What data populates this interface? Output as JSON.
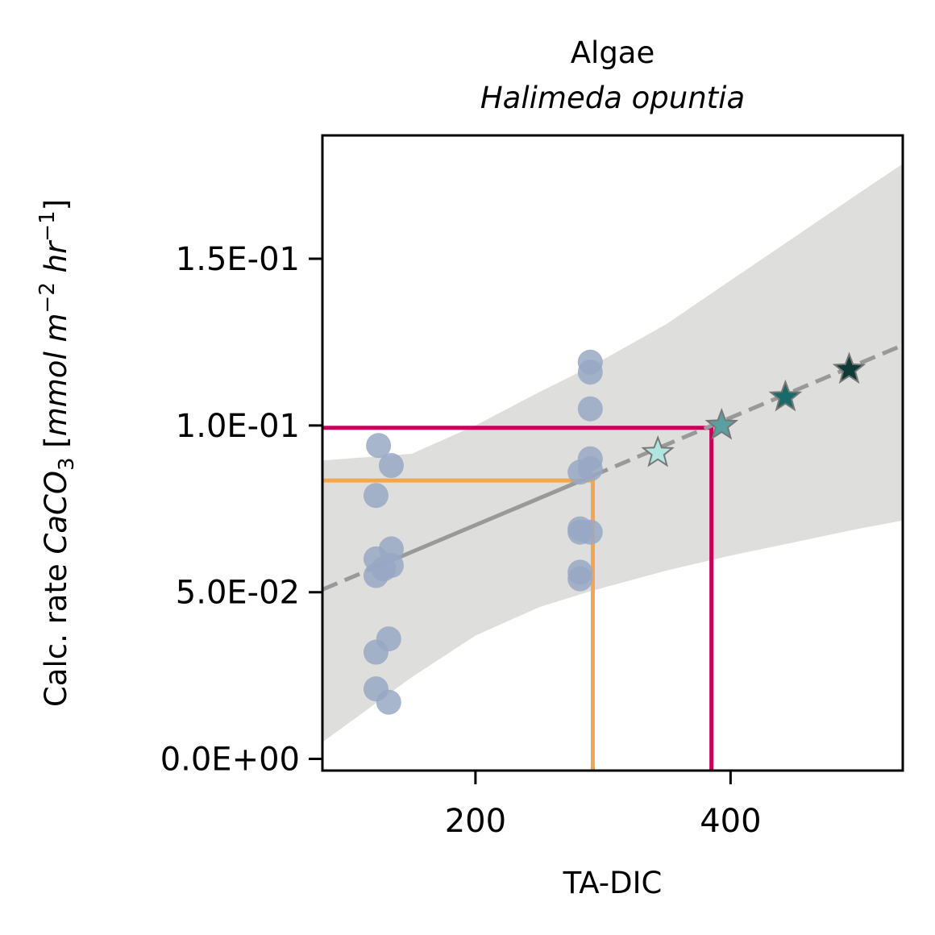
{
  "chart_data": {
    "type": "scatter",
    "title": "Algae",
    "subtitle": "Halimeda opuntia",
    "xlabel": "TA-DIC",
    "ylabel_parts": {
      "prefix": "Calc. rate ",
      "species": "CaCO",
      "species_sub": "3",
      "bracket_open": " [",
      "unit_a": "mmol m",
      "unit_a_sup": "−2",
      "unit_b": " hr",
      "unit_b_sup": "−1",
      "bracket_close": "]"
    },
    "xlim": [
      80,
      535
    ],
    "ylim": [
      -0.0035,
      0.187
    ],
    "xticks": [
      200,
      400
    ],
    "xtick_labels": [
      "200",
      "400"
    ],
    "yticks": [
      0.0,
      0.05,
      0.1,
      0.15
    ],
    "ytick_labels": [
      "0.0E+00",
      "5.0E-02",
      "1.0E-01",
      "1.5E-01"
    ],
    "observations": {
      "color": "#98a8c4",
      "points": [
        [
          124,
          0.094
        ],
        [
          134,
          0.088
        ],
        [
          122,
          0.079
        ],
        [
          134,
          0.063
        ],
        [
          122,
          0.06
        ],
        [
          134,
          0.058
        ],
        [
          128,
          0.057
        ],
        [
          122,
          0.055
        ],
        [
          132,
          0.036
        ],
        [
          122,
          0.032
        ],
        [
          122,
          0.021
        ],
        [
          132,
          0.017
        ],
        [
          290,
          0.119
        ],
        [
          290,
          0.116
        ],
        [
          290,
          0.105
        ],
        [
          290,
          0.09
        ],
        [
          290,
          0.087
        ],
        [
          282,
          0.086
        ],
        [
          282,
          0.069
        ],
        [
          282,
          0.068
        ],
        [
          290,
          0.068
        ],
        [
          282,
          0.056
        ],
        [
          282,
          0.054
        ]
      ]
    },
    "regression": {
      "color": "#999999",
      "intercept": 0.0379,
      "slope": 0.0001611,
      "solid_range": [
        125,
        292
      ],
      "dashed_ranges": [
        [
          80,
          125
        ],
        [
          292,
          535
        ]
      ]
    },
    "confidence_band": {
      "color": "#dededd",
      "x": [
        80,
        150,
        200,
        250,
        292,
        350,
        400,
        450,
        500,
        535
      ],
      "lower": [
        0.005,
        0.0245,
        0.037,
        0.0455,
        0.0505,
        0.0565,
        0.061,
        0.065,
        0.069,
        0.0715
      ],
      "upper": [
        0.0895,
        0.0915,
        0.1,
        0.11,
        0.118,
        0.1305,
        0.1435,
        0.1565,
        0.1695,
        0.1785
      ]
    },
    "projection_lines": [
      {
        "color": "#f5a64a",
        "x": 292,
        "y": 0.0835
      },
      {
        "color": "#c8005a",
        "x": 385,
        "y": 0.0993
      }
    ],
    "scenarios": {
      "points": [
        {
          "x": 343,
          "y": 0.0918,
          "color": "#b0e6df"
        },
        {
          "x": 393,
          "y": 0.1,
          "color": "#5aa0a0"
        },
        {
          "x": 443,
          "y": 0.1085,
          "color": "#1b6a6a"
        },
        {
          "x": 493,
          "y": 0.1168,
          "color": "#0e3b38"
        }
      ]
    }
  }
}
